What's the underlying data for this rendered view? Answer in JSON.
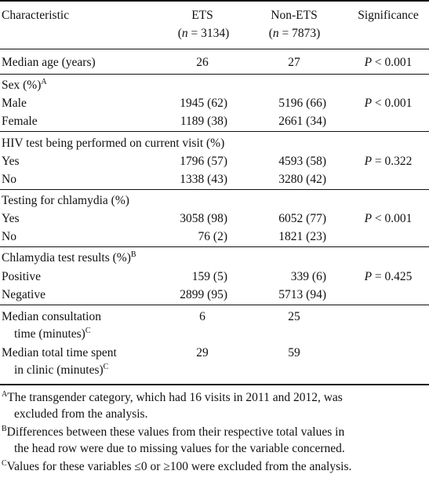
{
  "header": {
    "characteristic": "Characteristic",
    "ets": "ETS",
    "ets_n": "(n = 3134)",
    "non_ets": "Non-ETS",
    "non_ets_n": "(n = 7873)",
    "significance": "Significance"
  },
  "rows": {
    "median_age": {
      "label": "Median age (years)",
      "ets": "26",
      "non": "27",
      "sig": "P < 0.001"
    },
    "sex": {
      "label": "Sex (%)",
      "sup": "A",
      "male": {
        "label": "Male",
        "ets": "1945 (62)",
        "non": "5196 (66)",
        "sig": "P < 0.001"
      },
      "female": {
        "label": "Female",
        "ets": "1189 (38)",
        "non": "2661 (34)"
      }
    },
    "hiv": {
      "label": "HIV test being performed on current visit (%)",
      "yes": {
        "label": "Yes",
        "ets": "1796 (57)",
        "non": "4593 (58)",
        "sig": "P = 0.322"
      },
      "no": {
        "label": "No",
        "ets": "1338 (43)",
        "non": "3280 (42)"
      }
    },
    "chlamydia_test": {
      "label": "Testing for chlamydia (%)",
      "yes": {
        "label": "Yes",
        "ets": "3058 (98)",
        "non": "6052 (77)",
        "sig": "P < 0.001"
      },
      "no": {
        "label": "No",
        "ets": "76 (2)",
        "non": "1821 (23)"
      }
    },
    "chlamydia_result": {
      "label": "Chlamydia test results (%)",
      "sup": "B",
      "positive": {
        "label": "Positive",
        "ets": "159 (5)",
        "non": "339 (6)",
        "sig": "P = 0.425"
      },
      "negative": {
        "label": "Negative",
        "ets": "2899 (95)",
        "non": "5713 (94)"
      }
    },
    "consult": {
      "line1": "Median consultation",
      "line2": "time (minutes)",
      "sup": "C",
      "ets": "6",
      "non": "25"
    },
    "clinic": {
      "line1": "Median total time spent",
      "line2": "in clinic (minutes)",
      "sup": "C",
      "ets": "29",
      "non": "59"
    }
  },
  "footnotes": {
    "a_mark": "A",
    "a_line1": "The transgender category, which had 16 visits in 2011 and 2012, was",
    "a_line2": "excluded from the analysis.",
    "b_mark": "B",
    "b_line1": "Differences between these values from their respective total values in",
    "b_line2": "the head row were due to missing values for the variable concerned.",
    "c_mark": "C",
    "c_line1": "Values for these variables ≤0 or ≥100 were excluded from the analysis."
  }
}
